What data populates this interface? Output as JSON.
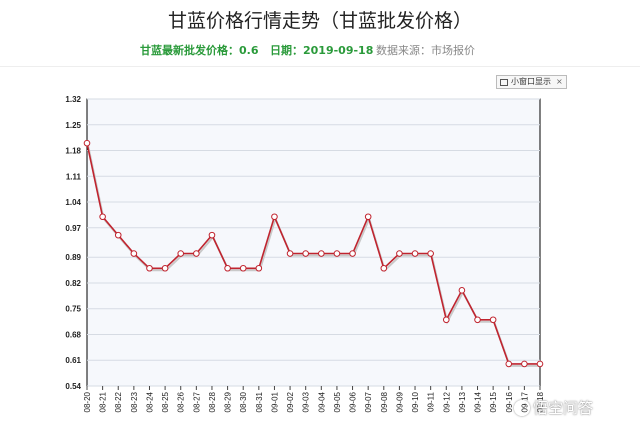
{
  "header": {
    "title": "甘蓝价格行情走势（甘蓝批发价格）",
    "latest_price": "甘蓝最新批发价格：0.6",
    "date": "日期：2019-09-18",
    "source": "数据来源：市场报价"
  },
  "toolbar": {
    "window_button_label": "小窗口显示",
    "close_glyph": "×"
  },
  "watermark": {
    "text": "悟空问答"
  },
  "colors": {
    "line": "#c0242f",
    "plot_bg": "#f6f8fc",
    "grid": "#d6dbe3",
    "accent_green": "#2a9a3a"
  },
  "chart_data": {
    "type": "line",
    "categories": [
      "08-20",
      "08-21",
      "08-22",
      "08-23",
      "08-24",
      "08-25",
      "08-26",
      "08-27",
      "08-28",
      "08-29",
      "08-30",
      "08-31",
      "09-01",
      "09-02",
      "09-03",
      "09-04",
      "09-05",
      "09-06",
      "09-07",
      "09-08",
      "09-09",
      "09-10",
      "09-11",
      "09-12",
      "09-13",
      "09-14",
      "09-15",
      "09-16",
      "09-17",
      "09-18"
    ],
    "series": [
      {
        "values": [
          1.2,
          1.0,
          0.95,
          0.9,
          0.86,
          0.86,
          0.9,
          0.9,
          0.95,
          0.86,
          0.86,
          0.86,
          1.0,
          0.9,
          0.9,
          0.9,
          0.9,
          0.9,
          1.0,
          0.86,
          0.9,
          0.9,
          0.9,
          0.72,
          0.8,
          0.72,
          0.72,
          0.6,
          0.6,
          0.6
        ]
      }
    ],
    "y_ticks": [
      "0.54",
      "0.61",
      "0.68",
      "0.75",
      "0.82",
      "0.89",
      "0.97",
      "1.04",
      "1.11",
      "1.18",
      "1.25",
      "1.32"
    ],
    "ylim": [
      0.54,
      1.32
    ],
    "grid": true,
    "legend": "none"
  }
}
